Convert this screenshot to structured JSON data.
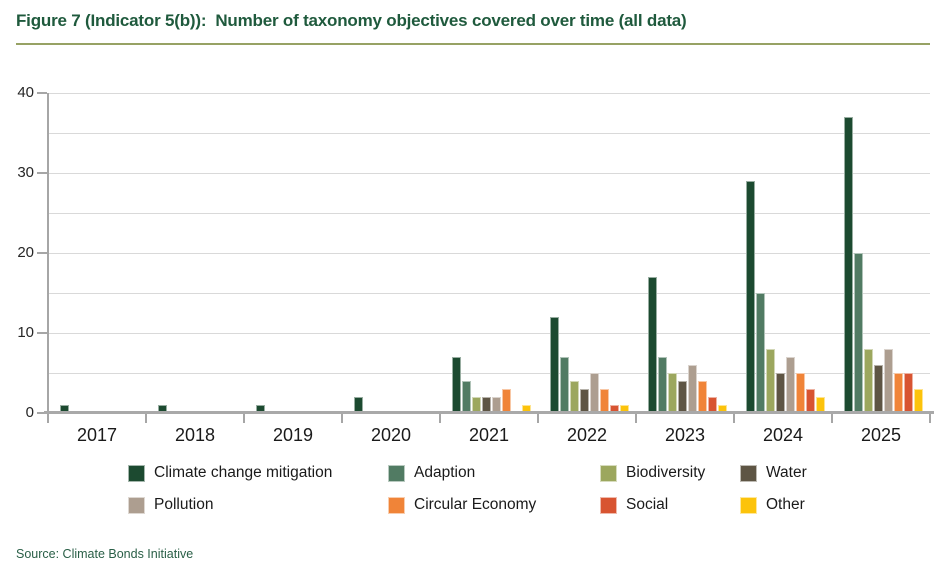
{
  "header": {
    "title": "Figure 7 (Indicator 5(b)):  Number of taxonomy objectives covered over time (all data)"
  },
  "source": {
    "label": "Source: Climate Bonds Initiative"
  },
  "colors": {
    "title_green": "#1f5a3d",
    "divider_olive": "#97a264",
    "gridline": "#d9d9d9",
    "axis_gray": "#a6a6a6",
    "label_dark": "#1a1a1a"
  },
  "chart_data": {
    "type": "bar",
    "title": "Number of taxonomy objectives covered over time (all data)",
    "xlabel": "",
    "ylabel": "",
    "ylim": [
      0,
      40
    ],
    "y_major_ticks": [
      0,
      10,
      20,
      30,
      40
    ],
    "y_minor_step": 5,
    "grid": true,
    "legend_position": "bottom",
    "categories": [
      "2017",
      "2018",
      "2019",
      "2020",
      "2021",
      "2022",
      "2023",
      "2024",
      "2025"
    ],
    "series": [
      {
        "name": "Climate change mitigation",
        "color": "#1c4a30",
        "values": [
          1,
          1,
          1,
          2,
          7,
          12,
          17,
          29,
          37
        ]
      },
      {
        "name": "Adaption",
        "color": "#517b63",
        "values": [
          0,
          0,
          0,
          0,
          4,
          7,
          7,
          15,
          20
        ]
      },
      {
        "name": "Biodiversity",
        "color": "#9ca75e",
        "values": [
          0,
          0,
          0,
          0,
          2,
          4,
          5,
          8,
          8
        ]
      },
      {
        "name": "Water",
        "color": "#5e5544",
        "values": [
          0,
          0,
          0,
          0,
          2,
          3,
          4,
          5,
          6
        ]
      },
      {
        "name": "Pollution",
        "color": "#ad9e90",
        "values": [
          0,
          0,
          0,
          0,
          2,
          5,
          6,
          7,
          8
        ]
      },
      {
        "name": "Circular Economy",
        "color": "#f08438",
        "values": [
          0,
          0,
          0,
          0,
          3,
          3,
          4,
          5,
          5
        ]
      },
      {
        "name": "Social",
        "color": "#d85431",
        "values": [
          0,
          0,
          0,
          0,
          0,
          1,
          2,
          3,
          5
        ]
      },
      {
        "name": "Other",
        "color": "#fcc30b",
        "values": [
          0,
          0,
          0,
          0,
          1,
          1,
          1,
          2,
          3
        ]
      }
    ]
  }
}
